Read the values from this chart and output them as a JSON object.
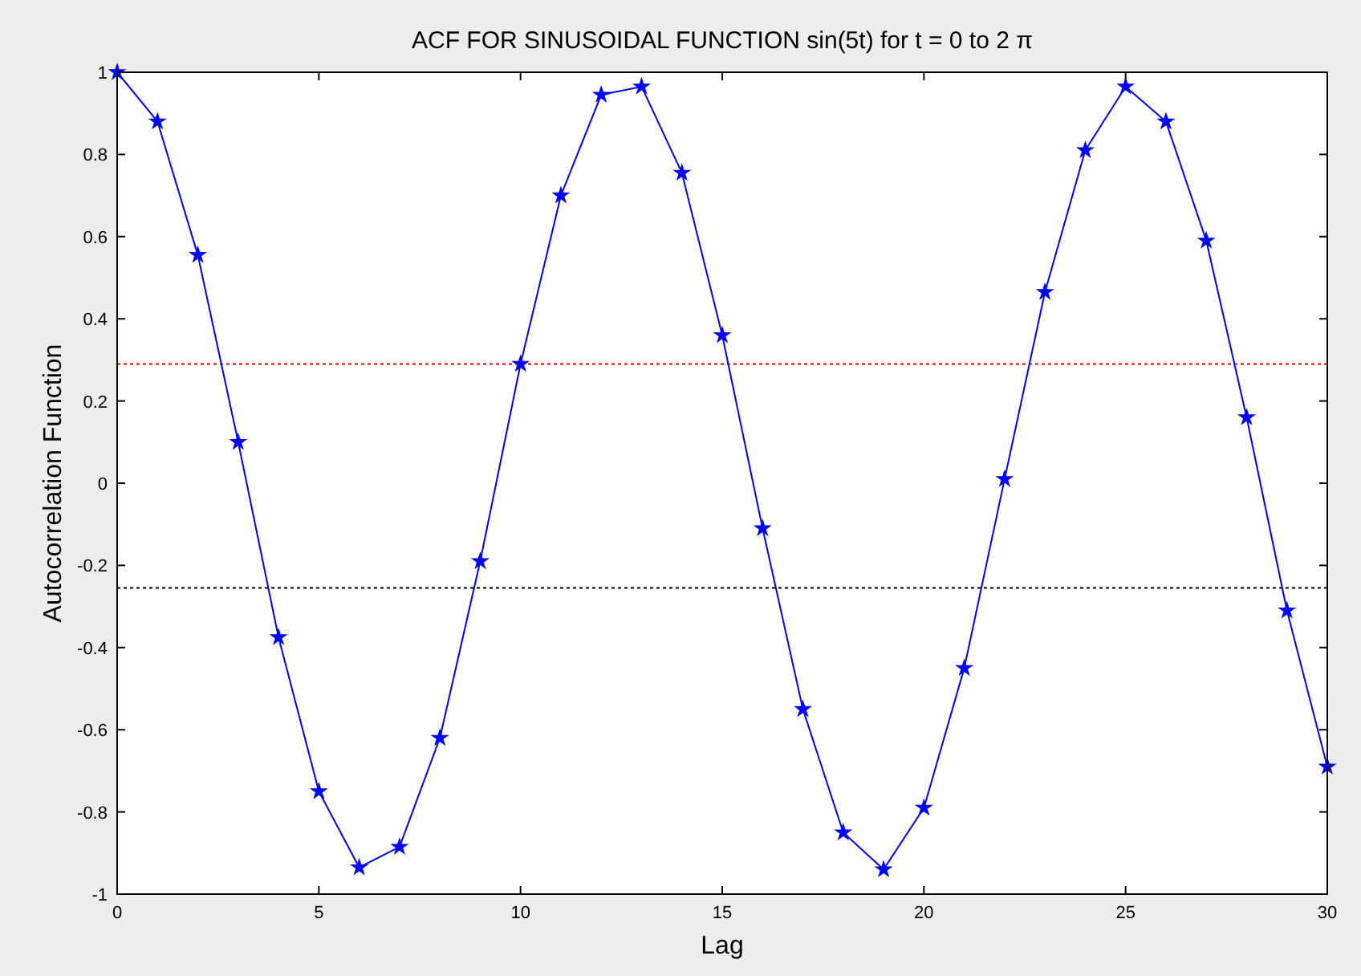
{
  "chart_data": {
    "type": "line",
    "title": "ACF FOR SINUSOIDAL FUNCTION sin(5t) for t = 0 to 2 π",
    "xlabel": "Lag",
    "ylabel": "Autocorrelation Function",
    "x": [
      0,
      1,
      2,
      3,
      4,
      5,
      6,
      7,
      8,
      9,
      10,
      11,
      12,
      13,
      14,
      15,
      16,
      17,
      18,
      19,
      20,
      21,
      22,
      23,
      24,
      25,
      26,
      27,
      28,
      29,
      30
    ],
    "series": [
      {
        "color": "#0000ff",
        "values": [
          1,
          0.88,
          0.555,
          0.1,
          -0.375,
          -0.75,
          -0.935,
          -0.885,
          -0.62,
          -0.19,
          0.29,
          0.7,
          0.945,
          0.965,
          0.755,
          0.36,
          -0.11,
          -0.55,
          -0.85,
          -0.94,
          -0.79,
          -0.45,
          0.01,
          0.465,
          0.81,
          0.965,
          0.88,
          0.59,
          0.16,
          -0.31,
          -0.69
        ]
      }
    ],
    "xlim": [
      0,
      30
    ],
    "xticks": [
      0,
      5,
      10,
      15,
      20,
      25,
      30
    ],
    "ylim": [
      -1,
      1
    ],
    "yticks": [
      -1,
      -0.8,
      -0.6,
      -0.4,
      -0.2,
      0,
      0.2,
      0.4,
      0.6,
      0.8,
      1
    ],
    "ref_lines": [
      {
        "axis": "y",
        "value": 0.29,
        "color": "#ff0000",
        "line_style": "dotted"
      },
      {
        "axis": "y",
        "value": -0.255,
        "color": "#000000",
        "line_style": "dotted"
      }
    ],
    "marker": "star",
    "line_style": "solid",
    "grid": false
  }
}
